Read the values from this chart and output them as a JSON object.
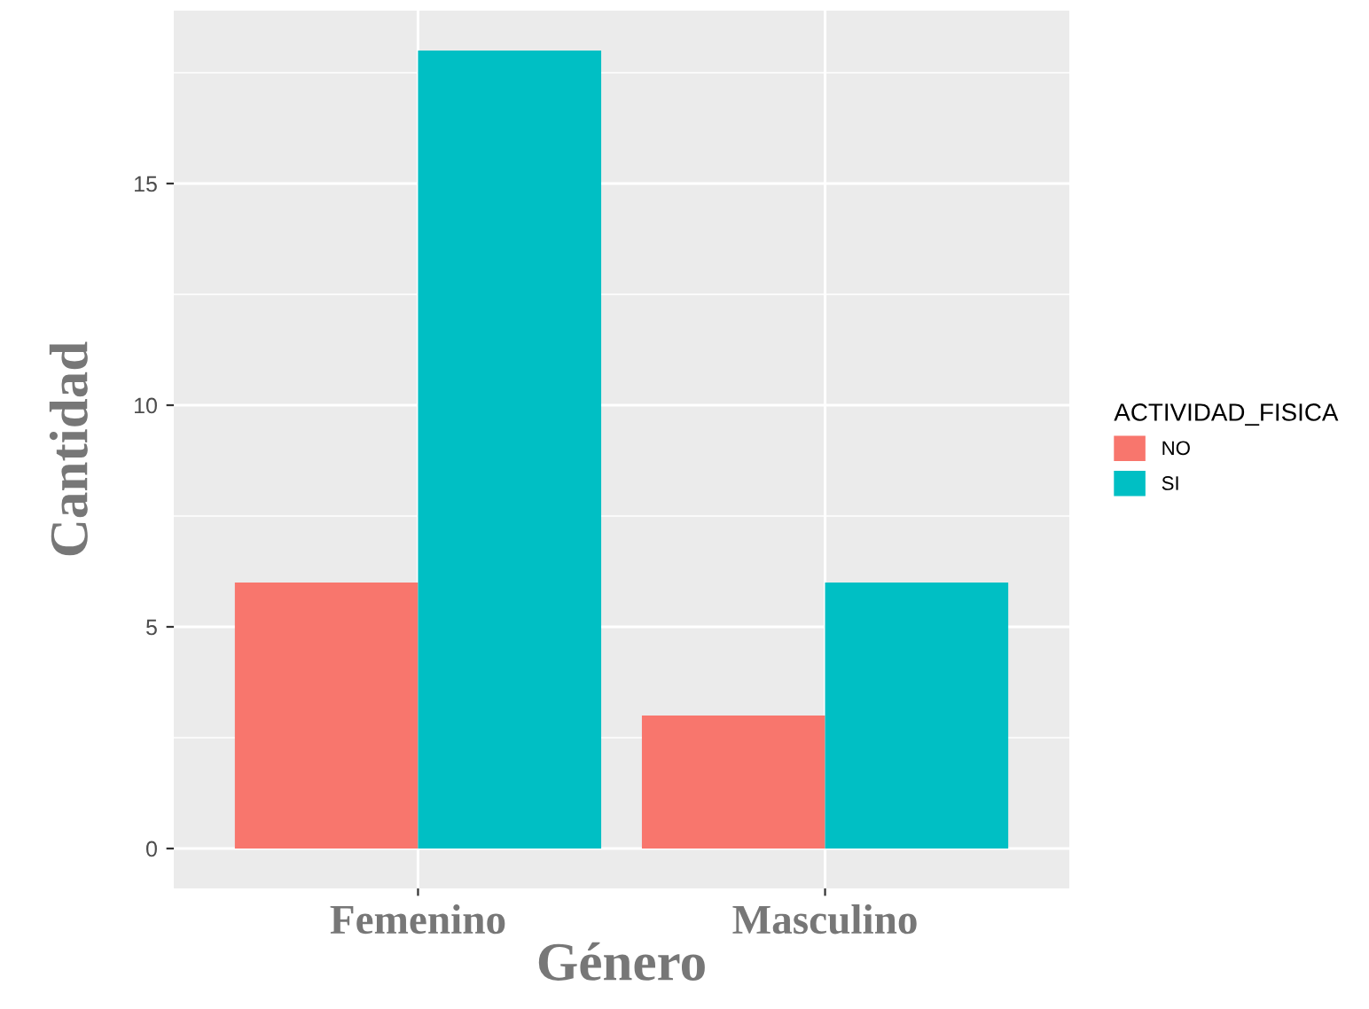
{
  "chart_data": {
    "type": "bar",
    "xlabel": "Género",
    "ylabel": "Cantidad",
    "legend_title": "ACTIVIDAD_FISICA",
    "categories": [
      "Femenino",
      "Masculino"
    ],
    "series": [
      {
        "name": "NO",
        "color": "#f8766d",
        "values": [
          6,
          3
        ]
      },
      {
        "name": "SI",
        "color": "#00bfc4",
        "values": [
          18,
          6
        ]
      }
    ],
    "ylim": [
      -0.9,
      18.9
    ],
    "yticks": [
      0,
      5,
      10,
      15
    ],
    "grid": true,
    "legend": "right"
  }
}
